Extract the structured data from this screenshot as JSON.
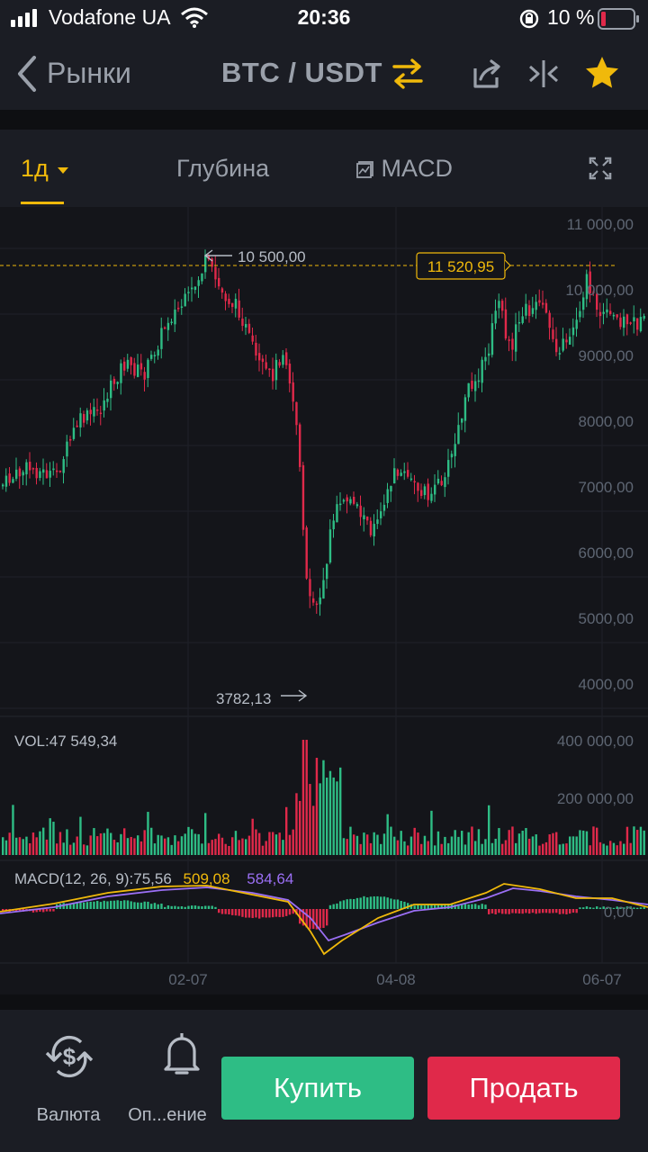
{
  "status": {
    "carrier": "Vodafone UA",
    "time": "20:36",
    "battery": "10 %"
  },
  "nav": {
    "back_label": "Рынки",
    "pair": "BTC / USDT"
  },
  "tabs": {
    "interval": "1д",
    "depth": "Глубина",
    "indicator": "MACD"
  },
  "chart_data": {
    "type": "candlestick",
    "y_ticks": [
      "11 000,00",
      "10 000,00",
      "9000,00",
      "8000,00",
      "7000,00",
      "6000,00",
      "5000,00",
      "4000,00"
    ],
    "x_ticks": [
      "02-07",
      "04-08",
      "06-07"
    ],
    "last_price": "11 520,95",
    "high_label": "10 500,00",
    "low_label": "3782,13",
    "volume": {
      "label": "VOL:47 549,34",
      "ticks": [
        "400 000,00",
        "200 000,00"
      ]
    },
    "macd": {
      "label": "MACD(12, 26, 9):75,56",
      "dif": "509,08",
      "dea": "584,64",
      "zero_tick": "0,00"
    }
  },
  "bottom": {
    "currency_label": "Валюта",
    "alerts_label": "Оп...ение",
    "buy_label": "Купить",
    "sell_label": "Продать"
  },
  "colors": {
    "up": "#2ebd85",
    "down": "#e0294a",
    "accent": "#f0b90b",
    "dif_line": "#f0b90b",
    "dea_line": "#9b6ff5"
  }
}
